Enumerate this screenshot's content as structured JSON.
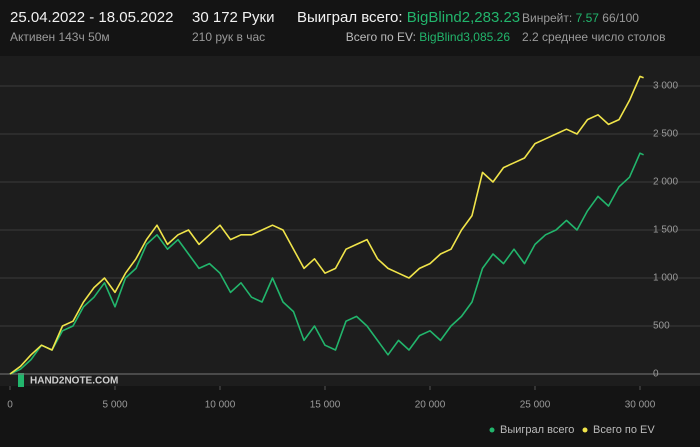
{
  "header": {
    "dates": "25.04.2022 - 18.05.2022",
    "active": "Активен 143ч 50м",
    "hands": "30 172 Руки",
    "hands_per_hour": "210 рук в час",
    "won_label": "Выиграл всего:",
    "won_value": "BigBlind2,283.23",
    "ev_label": "Всего по EV:",
    "ev_value": "BigBlind3,085.26",
    "winrate_label": "Винрейт:",
    "winrate_value": "7.57",
    "winrate_unit": "66/100",
    "tables": "2.2 среднее число столов"
  },
  "chart_data": {
    "type": "line",
    "watermark": "HAND2NOTE.COM",
    "x": [
      0,
      500,
      1000,
      1500,
      2000,
      2500,
      3000,
      3500,
      4000,
      4500,
      5000,
      5500,
      6000,
      6500,
      7000,
      7500,
      8000,
      8500,
      9000,
      9500,
      10000,
      10500,
      11000,
      11500,
      12000,
      12500,
      13000,
      13500,
      14000,
      14500,
      15000,
      15500,
      16000,
      16500,
      17000,
      17500,
      18000,
      18500,
      19000,
      19500,
      20000,
      20500,
      21000,
      21500,
      22000,
      22500,
      23000,
      23500,
      24000,
      24500,
      25000,
      25500,
      26000,
      26500,
      27000,
      27500,
      28000,
      28500,
      29000,
      29500,
      30000,
      30172
    ],
    "series": [
      {
        "name": "Выиграл всего",
        "color": "#22b56c",
        "values": [
          0,
          50,
          150,
          300,
          250,
          450,
          500,
          700,
          800,
          950,
          700,
          1000,
          1100,
          1350,
          1450,
          1300,
          1400,
          1250,
          1100,
          1150,
          1050,
          850,
          950,
          800,
          750,
          1000,
          750,
          650,
          350,
          500,
          300,
          250,
          550,
          600,
          500,
          350,
          200,
          350,
          250,
          400,
          450,
          350,
          500,
          600,
          750,
          1100,
          1250,
          1150,
          1300,
          1150,
          1350,
          1450,
          1500,
          1600,
          1500,
          1700,
          1850,
          1750,
          1950,
          2050,
          2300,
          2283.23
        ]
      },
      {
        "name": "Всего по EV",
        "color": "#f0e44a",
        "values": [
          0,
          80,
          200,
          300,
          250,
          500,
          550,
          750,
          900,
          1000,
          850,
          1050,
          1200,
          1400,
          1550,
          1350,
          1450,
          1500,
          1350,
          1450,
          1550,
          1400,
          1450,
          1450,
          1500,
          1550,
          1500,
          1300,
          1100,
          1200,
          1050,
          1100,
          1300,
          1350,
          1400,
          1200,
          1100,
          1050,
          1000,
          1100,
          1150,
          1250,
          1300,
          1500,
          1650,
          2100,
          2000,
          2150,
          2200,
          2250,
          2400,
          2450,
          2500,
          2550,
          2500,
          2650,
          2700,
          2600,
          2650,
          2850,
          3100,
          3085.26
        ]
      }
    ],
    "xlim": [
      0,
      30172
    ],
    "xticks": [
      0,
      {
        "value": 5000,
        "label": "5 000"
      },
      {
        "value": 10000,
        "label": "10 000"
      },
      {
        "value": 15000,
        "label": "15 000"
      },
      {
        "value": 20000,
        "label": "20 000"
      },
      {
        "value": 25000,
        "label": "25 000"
      },
      {
        "value": 30000,
        "label": "30 000"
      }
    ],
    "ylim": [
      -120,
      3300
    ],
    "yticks": [
      0,
      500,
      {
        "value": 1000,
        "label": "1 000"
      },
      {
        "value": 1500,
        "label": "1 500"
      },
      {
        "value": 2000,
        "label": "2 000"
      },
      {
        "value": 2500,
        "label": "2 500"
      },
      {
        "value": 3000,
        "label": "3 000"
      }
    ],
    "grid": true
  }
}
